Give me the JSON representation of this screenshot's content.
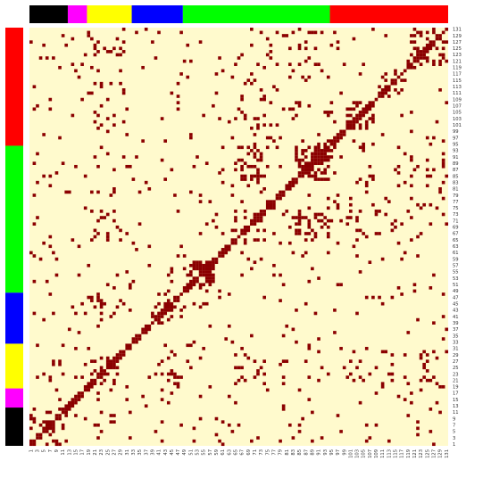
{
  "chart_data": {
    "type": "heatmap",
    "title": "",
    "xlabel": "",
    "ylabel": "",
    "n": 131,
    "colors": {
      "background": "#fffacd",
      "cell": "#8b0000"
    },
    "x_tick_labels": [
      "1",
      "3",
      "5",
      "7",
      "9",
      "11",
      "13",
      "15",
      "17",
      "19",
      "21",
      "23",
      "25",
      "27",
      "29",
      "31",
      "33",
      "35",
      "37",
      "39",
      "41",
      "43",
      "45",
      "47",
      "49",
      "51",
      "53",
      "55",
      "57",
      "59",
      "61",
      "63",
      "65",
      "67",
      "69",
      "71",
      "73",
      "75",
      "77",
      "79",
      "81",
      "83",
      "85",
      "87",
      "89",
      "91",
      "93",
      "95",
      "97",
      "99",
      "101",
      "103",
      "105",
      "107",
      "109",
      "111",
      "113",
      "115",
      "117",
      "119",
      "121",
      "123",
      "125",
      "127",
      "129",
      "131"
    ],
    "y_tick_labels": [
      "1",
      "3",
      "5",
      "7",
      "9",
      "11",
      "13",
      "15",
      "17",
      "19",
      "21",
      "23",
      "25",
      "27",
      "29",
      "31",
      "33",
      "35",
      "37",
      "39",
      "41",
      "43",
      "45",
      "47",
      "49",
      "51",
      "53",
      "55",
      "57",
      "59",
      "61",
      "63",
      "65",
      "67",
      "69",
      "71",
      "73",
      "75",
      "77",
      "79",
      "81",
      "83",
      "85",
      "87",
      "89",
      "91",
      "93",
      "95",
      "97",
      "99",
      "101",
      "103",
      "105",
      "107",
      "109",
      "111",
      "113",
      "115",
      "117",
      "119",
      "121",
      "123",
      "125",
      "127",
      "129",
      "131"
    ],
    "groups": [
      {
        "color": "#000000",
        "start": 1,
        "end": 12
      },
      {
        "color": "#ff00ff",
        "start": 13,
        "end": 18
      },
      {
        "color": "#ffff00",
        "start": 19,
        "end": 32
      },
      {
        "color": "#0000ff",
        "start": 33,
        "end": 48
      },
      {
        "color": "#00ff00",
        "start": 49,
        "end": 94
      },
      {
        "color": "#ff0000",
        "start": 95,
        "end": 131
      }
    ],
    "dense_blocks": [
      [
        20,
        28,
        20,
        28,
        0.45
      ],
      [
        39,
        48,
        39,
        48,
        0.42
      ],
      [
        51,
        58,
        51,
        58,
        0.5
      ],
      [
        65,
        74,
        65,
        74,
        0.22
      ],
      [
        84,
        94,
        84,
        94,
        0.55
      ],
      [
        84,
        94,
        65,
        75,
        0.35
      ],
      [
        100,
        108,
        100,
        108,
        0.25
      ],
      [
        109,
        118,
        109,
        118,
        0.2
      ],
      [
        120,
        131,
        120,
        131,
        0.18
      ],
      [
        20,
        30,
        65,
        80,
        0.1
      ],
      [
        20,
        30,
        100,
        131,
        0.12
      ],
      [
        40,
        48,
        20,
        30,
        0.15
      ],
      [
        65,
        95,
        95,
        131,
        0.08
      ],
      [
        1,
        12,
        1,
        12,
        0.12
      ]
    ],
    "background_density": 0.035,
    "seed": 7
  }
}
